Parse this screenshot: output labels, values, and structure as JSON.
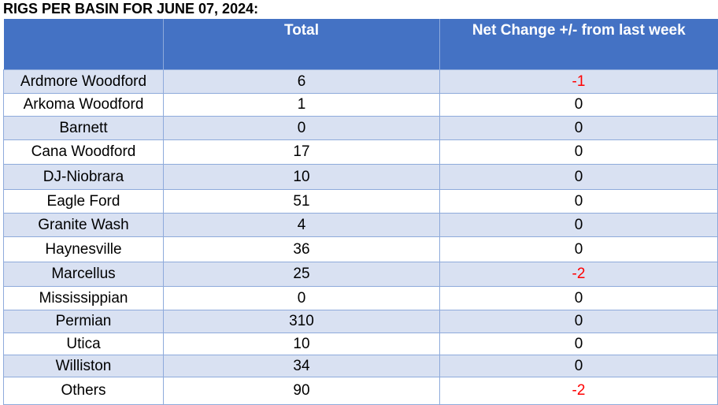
{
  "title": "RIGS PER BASIN FOR JUNE 07, 2024:",
  "chart_data": {
    "type": "table",
    "columns": [
      "",
      "Total",
      "Net Change +/- from last week"
    ],
    "rows": [
      {
        "basin": "Ardmore Woodford",
        "total": "6",
        "change": "-1"
      },
      {
        "basin": "Arkoma Woodford",
        "total": "1",
        "change": "0"
      },
      {
        "basin": "Barnett",
        "total": "0",
        "change": "0"
      },
      {
        "basin": "Cana Woodford",
        "total": "17",
        "change": "0"
      },
      {
        "basin": "DJ-Niobrara",
        "total": "10",
        "change": "0"
      },
      {
        "basin": "Eagle Ford",
        "total": "51",
        "change": "0"
      },
      {
        "basin": "Granite Wash",
        "total": "4",
        "change": "0"
      },
      {
        "basin": "Haynesville",
        "total": "36",
        "change": "0"
      },
      {
        "basin": "Marcellus",
        "total": "25",
        "change": "-2"
      },
      {
        "basin": "Mississippian",
        "total": "0",
        "change": "0"
      },
      {
        "basin": "Permian",
        "total": "310",
        "change": "0"
      },
      {
        "basin": "Utica",
        "total": "10",
        "change": "0"
      },
      {
        "basin": "Williston",
        "total": "34",
        "change": "0"
      },
      {
        "basin": "Others",
        "total": "90",
        "change": "-2"
      }
    ],
    "colors": {
      "header_bg": "#4472c4",
      "header_text": "#ffffff",
      "band_row": "#d9e1f2",
      "plain_row": "#ffffff",
      "border": "#8eaadb",
      "negative_text": "#ff0000"
    }
  }
}
